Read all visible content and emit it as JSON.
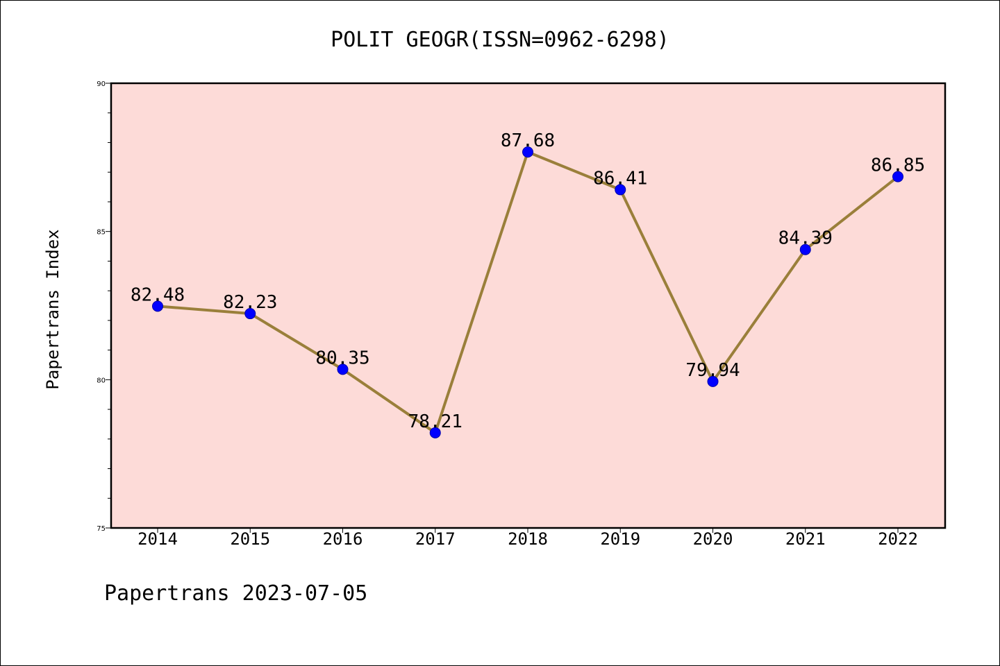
{
  "chart_data": {
    "type": "line",
    "title": "POLIT GEOGR(ISSN=0962-6298)",
    "xlabel": "",
    "ylabel": "Papertrans Index",
    "categories": [
      "2014",
      "2015",
      "2016",
      "2017",
      "2018",
      "2019",
      "2020",
      "2021",
      "2022"
    ],
    "values": [
      82.48,
      82.23,
      80.35,
      78.21,
      87.68,
      86.41,
      79.94,
      84.39,
      86.85
    ],
    "data_labels": [
      "82.48",
      "82.23",
      "80.35",
      "78.21",
      "87.68",
      "86.41",
      "79.94",
      "84.39",
      "86.85"
    ],
    "ylim": [
      75,
      90
    ],
    "yticks": [
      75,
      80,
      85,
      90
    ],
    "ytick_labels": [
      "75",
      "80",
      "85",
      "90"
    ],
    "yminor_step": 1,
    "grid": false,
    "legend": "none",
    "colors": {
      "plot_background": "#fddbd8",
      "line": "#9a7f3a",
      "marker": "#0000ff",
      "axis": "#000000"
    }
  },
  "footer": "Papertrans 2023-07-05"
}
